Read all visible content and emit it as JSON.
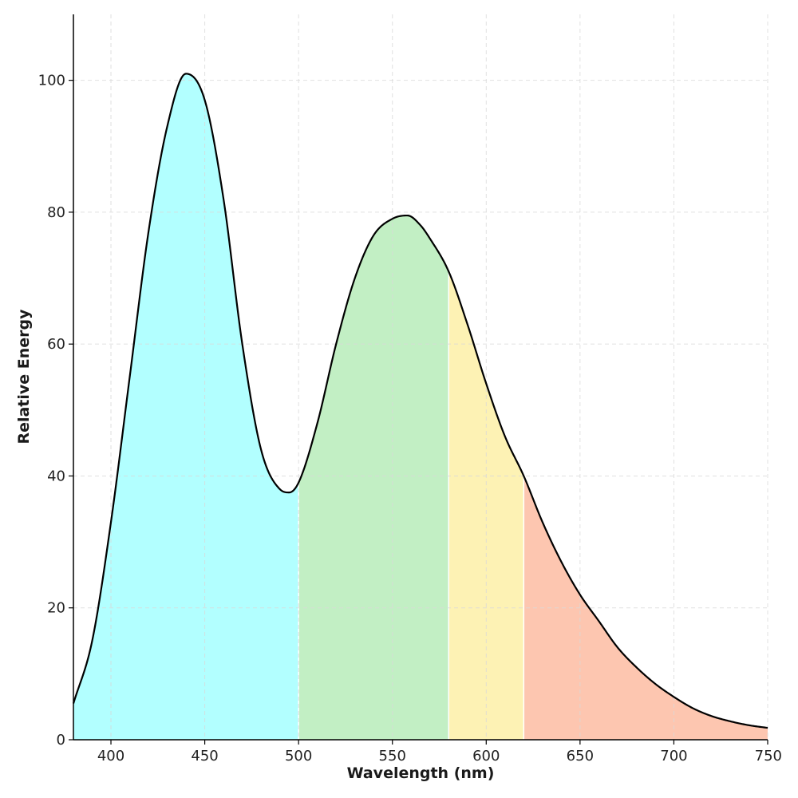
{
  "chart_data": {
    "type": "area",
    "title": "",
    "xlabel": "Wavelength (nm)",
    "ylabel": "Relative Energy",
    "xlim": [
      380,
      750
    ],
    "ylim": [
      0,
      110
    ],
    "grid": true,
    "xticks": [
      "400",
      "450",
      "500",
      "550",
      "600",
      "650",
      "700",
      "750"
    ],
    "yticks": [
      "0",
      "20",
      "40",
      "60",
      "80",
      "100"
    ],
    "curve_color": "#000000",
    "x": [
      380,
      390,
      400,
      410,
      420,
      430,
      440,
      450,
      460,
      470,
      480,
      490,
      495,
      500,
      510,
      520,
      530,
      540,
      550,
      558,
      565,
      570,
      580,
      590,
      600,
      610,
      620,
      630,
      640,
      650,
      660,
      670,
      680,
      690,
      700,
      710,
      720,
      730,
      740,
      750
    ],
    "y": [
      5.5,
      15,
      33,
      55,
      77,
      93,
      101,
      97,
      82,
      60,
      44,
      38,
      37.5,
      39,
      48,
      60,
      70,
      76.5,
      79,
      79.5,
      78,
      76,
      71,
      63,
      54,
      46,
      40,
      33,
      27,
      22,
      18,
      14,
      11,
      8.5,
      6.5,
      4.8,
      3.6,
      2.8,
      2.2,
      1.8
    ],
    "regions": [
      {
        "x_start": 380,
        "x_end": 500,
        "color": "#b2ffff"
      },
      {
        "x_start": 500,
        "x_end": 580,
        "color": "#c2efc4"
      },
      {
        "x_start": 580,
        "x_end": 620,
        "color": "#fdf2b4"
      },
      {
        "x_start": 620,
        "x_end": 750,
        "color": "#fdc6b0"
      }
    ]
  }
}
